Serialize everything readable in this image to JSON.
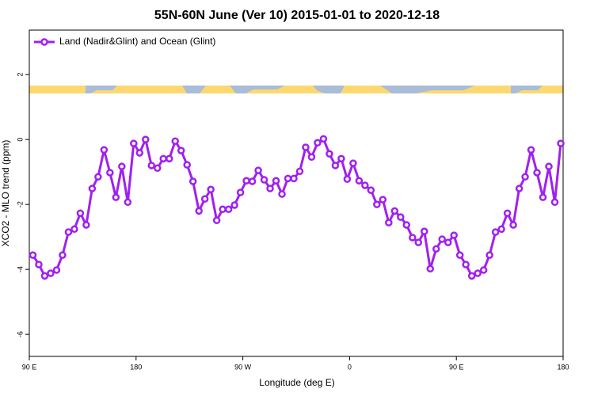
{
  "chart_data": {
    "type": "line",
    "title": "55N-60N June (Ver 10)   2015-01-01 to 2020-12-18",
    "x_label": "Longitude (deg E)",
    "y_label": "XCO2 - MLO trend (ppm)",
    "x": [
      93,
      98,
      103,
      108,
      113,
      118,
      123,
      128,
      133,
      138,
      143,
      148,
      153,
      158,
      163,
      168,
      173,
      178,
      183,
      188,
      193,
      198,
      203,
      208,
      213,
      218,
      223,
      228,
      233,
      238,
      243,
      248,
      253,
      258,
      263,
      268,
      273,
      278,
      283,
      288,
      293,
      298,
      303,
      308,
      313,
      318,
      323,
      328,
      333,
      338,
      343,
      348,
      353,
      358,
      363,
      368,
      373,
      378,
      383,
      388,
      393,
      398,
      403,
      408,
      413,
      418,
      423,
      428,
      433,
      438,
      443,
      448,
      453,
      458,
      463,
      468,
      473,
      478,
      483,
      488,
      493,
      498,
      503,
      508,
      513,
      518,
      523,
      528,
      533,
      538
    ],
    "series": [
      {
        "name": "Land (Nadir&Glint) and Ocean (Glint)",
        "color": "#a020f0",
        "values": [
          -3.56,
          -3.85,
          -4.2,
          -4.12,
          -4.02,
          -3.56,
          -2.85,
          -2.76,
          -2.27,
          -2.63,
          -1.51,
          -1.15,
          -0.32,
          -1.02,
          -1.78,
          -0.83,
          -1.93,
          -0.12,
          -0.41,
          0.0,
          -0.8,
          -0.88,
          -0.59,
          -0.59,
          -0.05,
          -0.34,
          -0.78,
          -1.29,
          -2.2,
          -1.83,
          -1.54,
          -2.49,
          -2.15,
          -2.15,
          -2.02,
          -1.63,
          -1.27,
          -1.29,
          -0.95,
          -1.24,
          -1.51,
          -1.27,
          -1.68,
          -1.2,
          -1.2,
          -0.98,
          -0.24,
          -0.54,
          -0.1,
          0.02,
          -0.44,
          -0.8,
          -0.59,
          -1.22,
          -0.73,
          -1.27,
          -1.41,
          -1.56,
          -2.0,
          -1.85,
          -2.56,
          -2.2,
          -2.39,
          -2.63,
          -3.02,
          -3.17,
          -2.83,
          -3.98,
          -3.37,
          -3.07,
          -3.17,
          -2.95,
          -3.56,
          -3.85,
          -4.2,
          -4.12,
          -4.02,
          -3.56,
          -2.85,
          -2.76,
          -2.27,
          -2.63,
          -1.51,
          -1.15,
          -0.32,
          -1.02,
          -1.78,
          -0.83,
          -1.93,
          -0.12
        ]
      }
    ],
    "xlim": [
      90,
      540
    ],
    "xticks": [
      {
        "value": 90,
        "label": "90 E"
      },
      {
        "value": 180,
        "label": "180"
      },
      {
        "value": 270,
        "label": "90 W"
      },
      {
        "value": 360,
        "label": "0"
      },
      {
        "value": 450,
        "label": "90 E"
      },
      {
        "value": 540,
        "label": "180"
      }
    ],
    "ylim": [
      -6.68,
      3.37
    ],
    "yticks": [
      -6,
      -4,
      -2,
      0,
      2
    ],
    "legend": "top-left"
  }
}
